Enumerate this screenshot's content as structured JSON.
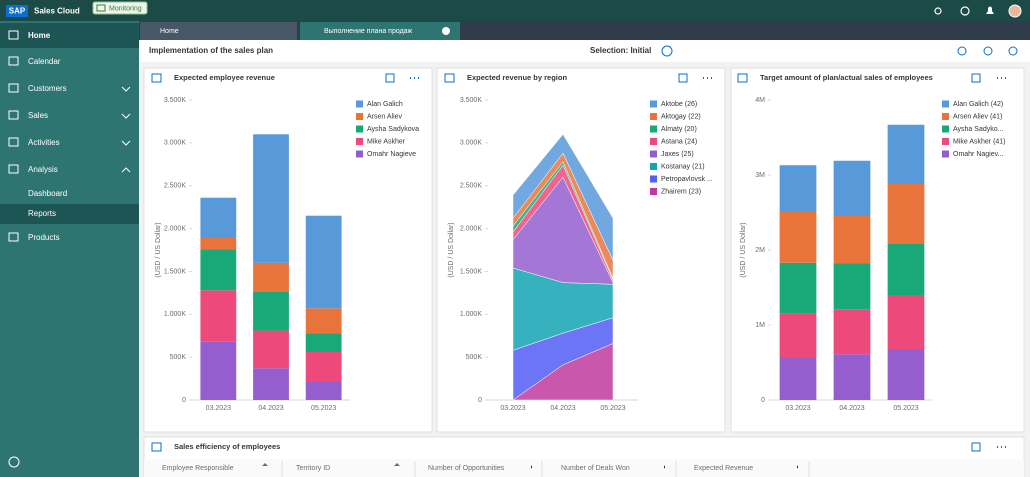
{
  "header": {
    "logo": "SAP",
    "product": "Sales Cloud",
    "badge": "Monitoring"
  },
  "nav": [
    "Home",
    "Calendar",
    "Customers",
    "Sales",
    "Activities",
    "Analysis",
    "Dashboard",
    "Reports",
    "Products"
  ],
  "tabs": [
    "Home",
    "Выполнение плана продаж"
  ],
  "page": {
    "title": "Implementation of the sales plan",
    "selection": "Selection: Initial"
  },
  "chart_data": [
    {
      "type": "bar",
      "stacked": true,
      "title": "Expected employee revenue",
      "y_label": "(USD / US Dollar)",
      "categories": [
        "03.2023",
        "04.2023",
        "05.2023"
      ],
      "ylim": [
        0,
        3500000
      ],
      "yticks": [
        0,
        {
          "value": 500000,
          "label": "500K"
        },
        {
          "value": 1000000,
          "label": "1.000K"
        },
        {
          "value": 1500000,
          "label": "1.500K"
        },
        {
          "value": 2000000,
          "label": "2.000K"
        },
        {
          "value": 2500000,
          "label": "2.500K"
        },
        {
          "value": 3000000,
          "label": "3.000K"
        },
        {
          "value": 3500000,
          "label": "3.500K"
        }
      ],
      "series": [
        {
          "name": "Alan Galich",
          "color": "#5899DA",
          "values": [
            470000,
            1500000,
            1080000
          ]
        },
        {
          "name": "Arsen Aliev",
          "color": "#E8743B",
          "values": [
            130000,
            340000,
            290000
          ]
        },
        {
          "name": "Aysha Sadykova",
          "color": "#19A979",
          "values": [
            480000,
            450000,
            220000
          ]
        },
        {
          "name": "Mike Askher",
          "color": "#ED4A7B",
          "values": [
            600000,
            440000,
            350000
          ]
        },
        {
          "name": "Omahr Nagieve",
          "color": "#945ECF",
          "values": [
            680000,
            370000,
            210000
          ]
        }
      ]
    },
    {
      "type": "area",
      "stacked": true,
      "title": "Expected revenue by region",
      "y_label": "(USD / US Dollar)",
      "categories": [
        "03.2023",
        "04.2023",
        "05.2023"
      ],
      "ylim": [
        0,
        3500000
      ],
      "yticks": [
        0,
        {
          "value": 500000,
          "label": "500K"
        },
        {
          "value": 1000000,
          "label": "1.000K"
        },
        {
          "value": 1500000,
          "label": "1.500K"
        },
        {
          "value": 2000000,
          "label": "2.000K"
        },
        {
          "value": 2500000,
          "label": "2.500K"
        },
        {
          "value": 3000000,
          "label": "3.000K"
        },
        {
          "value": 3500000,
          "label": "3.500K"
        }
      ],
      "series": [
        {
          "name": "Aktobe (26)",
          "color": "#5899DA",
          "values": [
            270000,
            220000,
            490000
          ]
        },
        {
          "name": "Aktogay (22)",
          "color": "#E8743B",
          "values": [
            90000,
            100000,
            210000
          ]
        },
        {
          "name": "Almaty (20)",
          "color": "#19A979",
          "values": [
            70000,
            40000,
            20000
          ]
        },
        {
          "name": "Astana (24)",
          "color": "#ED4A7B",
          "values": [
            90000,
            140000,
            30000
          ]
        },
        {
          "name": "Jaxes (25)",
          "color": "#945ECF",
          "values": [
            330000,
            1230000,
            20000
          ]
        },
        {
          "name": "Kostanay (21)",
          "color": "#13A4B4",
          "values": [
            960000,
            590000,
            390000
          ]
        },
        {
          "name": "Petropavlovsk ...",
          "color": "#525DF4",
          "values": [
            580000,
            370000,
            300000
          ]
        },
        {
          "name": "Zhairem (23)",
          "color": "#BF399E",
          "values": [
            0,
            410000,
            660000
          ]
        }
      ]
    },
    {
      "type": "bar",
      "stacked": true,
      "title": "Target amount of plan/actual sales of employees",
      "y_label": "(USD / US Dollar)",
      "categories": [
        "03.2023",
        "04.2023",
        "05.2023"
      ],
      "ylim": [
        0,
        4000000
      ],
      "yticks": [
        0,
        {
          "value": 1000000,
          "label": "1M"
        },
        {
          "value": 2000000,
          "label": "2M"
        },
        {
          "value": 3000000,
          "label": "3M"
        },
        {
          "value": 4000000,
          "label": "4M"
        }
      ],
      "series": [
        {
          "name": "Alan Galich (42)",
          "color": "#5899DA",
          "values": [
            610000,
            730000,
            790000
          ]
        },
        {
          "name": "Arsen Aliev (41)",
          "color": "#E8743B",
          "values": [
            690000,
            640000,
            790000
          ]
        },
        {
          "name": "Aysha Sadyko...",
          "color": "#19A979",
          "values": [
            680000,
            610000,
            690000
          ]
        },
        {
          "name": "Mike Askher (41)",
          "color": "#ED4A7B",
          "values": [
            590000,
            600000,
            720000
          ]
        },
        {
          "name": "Omahr Nagiev...",
          "color": "#945ECF",
          "values": [
            560000,
            610000,
            680000
          ]
        }
      ]
    }
  ],
  "table": {
    "title": "Sales efficiency of employees",
    "columns": [
      "Employee Responsible",
      "Territory ID",
      "Number of Opportunities",
      "Number of Deals Won",
      "Expected Revenue"
    ]
  }
}
